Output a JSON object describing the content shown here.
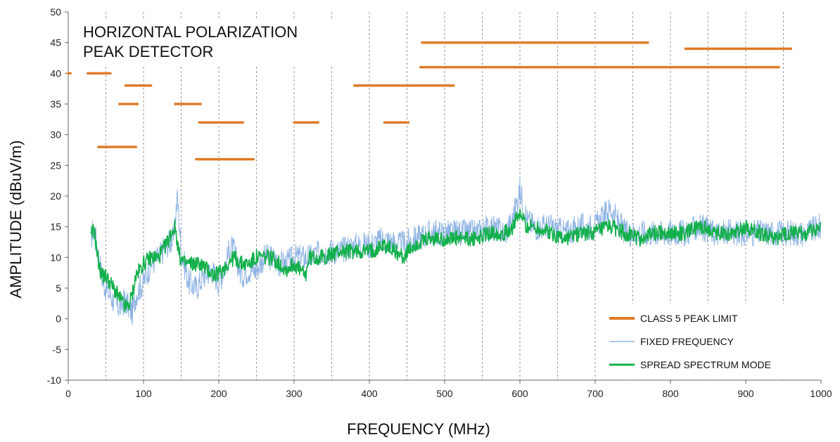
{
  "chart_data": {
    "type": "line",
    "title": "",
    "annotation": [
      "HORIZONTAL POLARIZATION",
      "PEAK DETECTOR"
    ],
    "xlabel": "FREQUENCY (MHz)",
    "ylabel": "AMPLITUDE (dBuV/m)",
    "xlim": [
      0,
      1000
    ],
    "ylim": [
      -10,
      50
    ],
    "x_ticks": [
      0,
      100,
      200,
      300,
      400,
      500,
      600,
      700,
      800,
      900,
      1000
    ],
    "y_ticks": [
      -10,
      -5,
      0,
      5,
      10,
      15,
      20,
      25,
      30,
      35,
      40,
      45,
      50
    ],
    "grid": "vertical dashed every 50 MHz",
    "legend_position": "bottom-right",
    "colors": {
      "limit": "#e07b28",
      "fixed": "#8fb4e3",
      "spread": "#12b04a"
    },
    "legend": [
      "CLASS 5 PEAK LIMIT",
      "FIXED FREQUENCY",
      "SPREAD SPECTRUM MODE"
    ],
    "limit_segments": [
      {
        "x": [
          0,
          3
        ],
        "y": 40
      },
      {
        "x": [
          26,
          56
        ],
        "y": 40
      },
      {
        "x": [
          40,
          90
        ],
        "y": 28
      },
      {
        "x": [
          68,
          92
        ],
        "y": 35
      },
      {
        "x": [
          76,
          110
        ],
        "y": 38
      },
      {
        "x": [
          142,
          176
        ],
        "y": 35
      },
      {
        "x": [
          174,
          232
        ],
        "y": 32
      },
      {
        "x": [
          170,
          246
        ],
        "y": 26
      },
      {
        "x": [
          300,
          332
        ],
        "y": 32
      },
      {
        "x": [
          380,
          512
        ],
        "y": 38
      },
      {
        "x": [
          420,
          452
        ],
        "y": 32
      },
      {
        "x": [
          468,
          944
        ],
        "y": 41
      },
      {
        "x": [
          470,
          770
        ],
        "y": 45
      },
      {
        "x": [
          820,
          960
        ],
        "y": 44
      }
    ],
    "series": [
      {
        "name": "FIXED FREQUENCY",
        "x": [
          30,
          34,
          38,
          42,
          46,
          50,
          55,
          60,
          65,
          70,
          75,
          80,
          85,
          90,
          95,
          100,
          110,
          120,
          130,
          140,
          145,
          150,
          160,
          170,
          180,
          190,
          200,
          210,
          215,
          220,
          230,
          240,
          250,
          260,
          270,
          280,
          290,
          300,
          320,
          340,
          360,
          380,
          400,
          420,
          440,
          460,
          480,
          500,
          520,
          540,
          560,
          580,
          590,
          600,
          610,
          620,
          640,
          660,
          680,
          700,
          720,
          740,
          760,
          780,
          800,
          820,
          840,
          860,
          880,
          900,
          920,
          940,
          960,
          980,
          1000
        ],
        "y": [
          13,
          15,
          12,
          9,
          6,
          5,
          4,
          3,
          2,
          2,
          3,
          2,
          1,
          4,
          5,
          6,
          9,
          10,
          12,
          13,
          20,
          11,
          6,
          5,
          7,
          8,
          6,
          9,
          12,
          11,
          7,
          8,
          8,
          10,
          10,
          9,
          9,
          10,
          10,
          11,
          11,
          12,
          12,
          13,
          12,
          13,
          14,
          14,
          14,
          14,
          15,
          14,
          16,
          21,
          16,
          15,
          15,
          14,
          15,
          15,
          18,
          14,
          14,
          14,
          14,
          14,
          15,
          14,
          14,
          14,
          14,
          14,
          14,
          14,
          15
        ]
      },
      {
        "name": "SPREAD SPECTRUM MODE",
        "x": [
          30,
          34,
          38,
          42,
          46,
          50,
          55,
          60,
          65,
          70,
          75,
          80,
          85,
          90,
          95,
          100,
          110,
          120,
          130,
          137,
          142,
          148,
          155,
          165,
          175,
          185,
          195,
          205,
          212,
          220,
          230,
          240,
          250,
          260,
          270,
          280,
          290,
          300,
          315,
          320,
          340,
          360,
          380,
          400,
          420,
          435,
          445,
          460,
          480,
          500,
          520,
          540,
          560,
          580,
          590,
          600,
          610,
          620,
          640,
          660,
          680,
          700,
          720,
          740,
          760,
          780,
          800,
          820,
          840,
          860,
          880,
          900,
          920,
          940,
          960,
          980,
          1000
        ],
        "y": [
          13,
          15,
          11,
          8,
          7,
          7,
          6,
          5,
          4,
          3,
          2,
          2,
          4,
          7,
          8,
          9,
          10,
          10,
          12,
          14,
          15,
          10,
          9,
          9,
          9,
          8,
          7,
          8,
          9,
          10,
          9,
          9,
          10,
          10,
          10,
          9,
          8,
          9,
          7,
          10,
          10,
          11,
          11,
          11,
          12,
          11,
          10,
          12,
          13,
          13,
          13,
          13,
          14,
          14,
          15,
          17,
          15,
          15,
          14,
          13,
          14,
          14,
          15,
          14,
          13,
          14,
          14,
          14,
          15,
          14,
          14,
          15,
          14,
          13,
          14,
          14,
          15
        ]
      }
    ]
  }
}
